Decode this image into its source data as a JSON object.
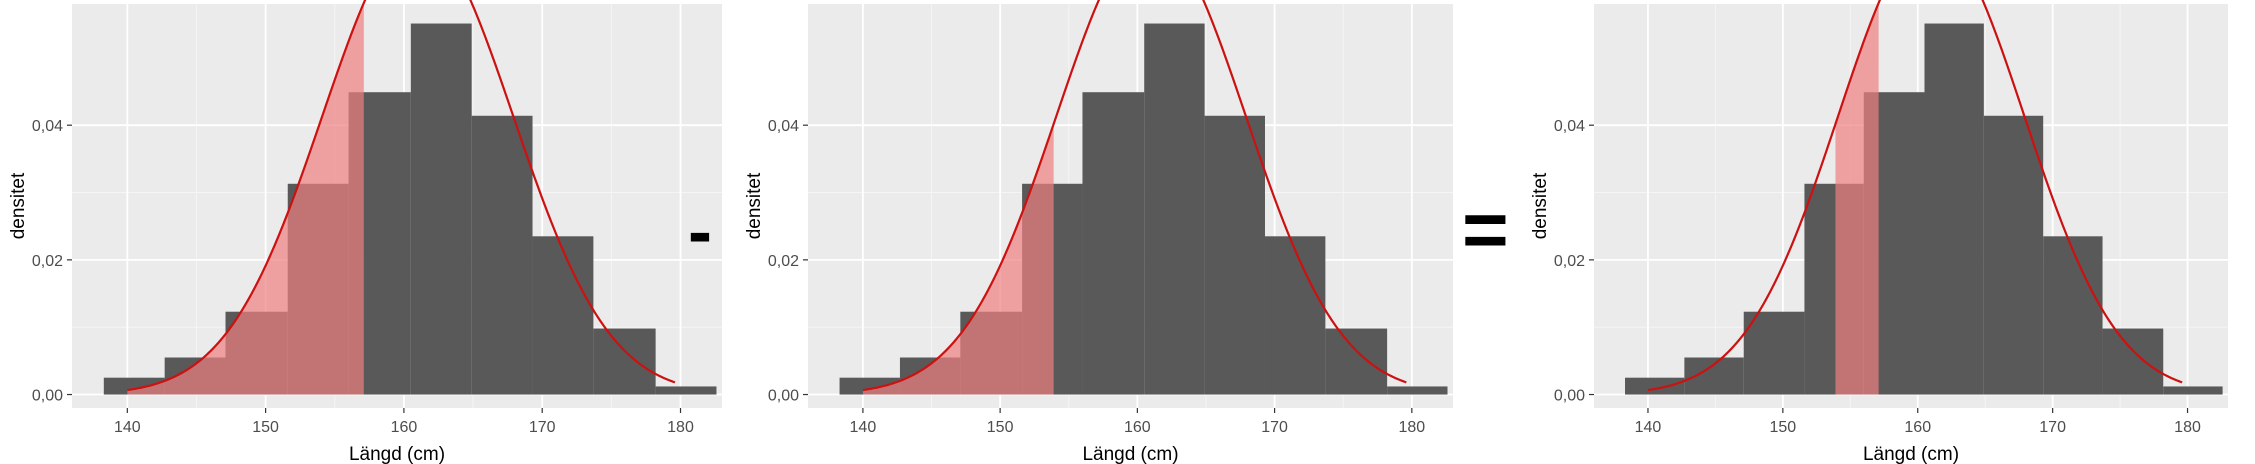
{
  "colors": {
    "panel_background": "#ebebeb",
    "grid_major": "#ffffff",
    "grid_minor": "#f5f5f5",
    "bar_fill": "#595959",
    "shade_fill": "#f08080",
    "shade_opacity": 0.7,
    "curve": "#cc1111"
  },
  "operators": {
    "minus": "-",
    "equals": "="
  },
  "chart_data": [
    {
      "type": "bar",
      "xlabel": "Längd (cm)",
      "ylabel": "densitet",
      "xlim": [
        136,
        183
      ],
      "ylim": [
        -0.002,
        0.058
      ],
      "xticks": [
        140,
        150,
        160,
        170,
        180
      ],
      "yticks": [
        0,
        0.02,
        0.04
      ],
      "ytick_labels": [
        "0,00",
        "0,02",
        "0,04"
      ],
      "bins": [
        {
          "x0": 138.3,
          "x1": 142.7,
          "density": 0.0025
        },
        {
          "x0": 142.7,
          "x1": 147.1,
          "density": 0.0055
        },
        {
          "x0": 147.1,
          "x1": 151.6,
          "density": 0.0123
        },
        {
          "x0": 151.6,
          "x1": 156.0,
          "density": 0.0313
        },
        {
          "x0": 156.0,
          "x1": 160.5,
          "density": 0.0449
        },
        {
          "x0": 160.5,
          "x1": 164.9,
          "density": 0.0551
        },
        {
          "x0": 164.9,
          "x1": 169.3,
          "density": 0.0414
        },
        {
          "x0": 169.3,
          "x1": 173.7,
          "density": 0.0235
        },
        {
          "x0": 173.7,
          "x1": 178.2,
          "density": 0.0098
        },
        {
          "x0": 178.2,
          "x1": 182.6,
          "density": 0.0012
        }
      ],
      "normal_curve": {
        "mean": 161,
        "sd": 6.9,
        "scale": 1.18,
        "x_from": 140,
        "x_to": 179.6
      },
      "shaded_interval": [
        140,
        157.1
      ]
    },
    {
      "type": "bar",
      "xlabel": "Längd (cm)",
      "ylabel": "densitet",
      "xlim": [
        136,
        183
      ],
      "ylim": [
        -0.002,
        0.058
      ],
      "xticks": [
        140,
        150,
        160,
        170,
        180
      ],
      "yticks": [
        0,
        0.02,
        0.04
      ],
      "ytick_labels": [
        "0,00",
        "0,02",
        "0,04"
      ],
      "bins": [
        {
          "x0": 138.3,
          "x1": 142.7,
          "density": 0.0025
        },
        {
          "x0": 142.7,
          "x1": 147.1,
          "density": 0.0055
        },
        {
          "x0": 147.1,
          "x1": 151.6,
          "density": 0.0123
        },
        {
          "x0": 151.6,
          "x1": 156.0,
          "density": 0.0313
        },
        {
          "x0": 156.0,
          "x1": 160.5,
          "density": 0.0449
        },
        {
          "x0": 160.5,
          "x1": 164.9,
          "density": 0.0551
        },
        {
          "x0": 164.9,
          "x1": 169.3,
          "density": 0.0414
        },
        {
          "x0": 169.3,
          "x1": 173.7,
          "density": 0.0235
        },
        {
          "x0": 173.7,
          "x1": 178.2,
          "density": 0.0098
        },
        {
          "x0": 178.2,
          "x1": 182.6,
          "density": 0.0012
        }
      ],
      "normal_curve": {
        "mean": 161,
        "sd": 6.9,
        "scale": 1.18,
        "x_from": 140,
        "x_to": 179.6
      },
      "shaded_interval": [
        140,
        153.9
      ]
    },
    {
      "type": "bar",
      "xlabel": "Längd (cm)",
      "ylabel": "densitet",
      "xlim": [
        136,
        183
      ],
      "ylim": [
        -0.002,
        0.058
      ],
      "xticks": [
        140,
        150,
        160,
        170,
        180
      ],
      "yticks": [
        0,
        0.02,
        0.04
      ],
      "ytick_labels": [
        "0,00",
        "0,02",
        "0,04"
      ],
      "bins": [
        {
          "x0": 138.3,
          "x1": 142.7,
          "density": 0.0025
        },
        {
          "x0": 142.7,
          "x1": 147.1,
          "density": 0.0055
        },
        {
          "x0": 147.1,
          "x1": 151.6,
          "density": 0.0123
        },
        {
          "x0": 151.6,
          "x1": 156.0,
          "density": 0.0313
        },
        {
          "x0": 156.0,
          "x1": 160.5,
          "density": 0.0449
        },
        {
          "x0": 160.5,
          "x1": 164.9,
          "density": 0.0551
        },
        {
          "x0": 164.9,
          "x1": 169.3,
          "density": 0.0414
        },
        {
          "x0": 169.3,
          "x1": 173.7,
          "density": 0.0235
        },
        {
          "x0": 173.7,
          "x1": 178.2,
          "density": 0.0098
        },
        {
          "x0": 178.2,
          "x1": 182.6,
          "density": 0.0012
        }
      ],
      "normal_curve": {
        "mean": 161,
        "sd": 6.9,
        "scale": 1.18,
        "x_from": 140,
        "x_to": 179.6
      },
      "shaded_interval": [
        153.9,
        157.1
      ]
    }
  ]
}
